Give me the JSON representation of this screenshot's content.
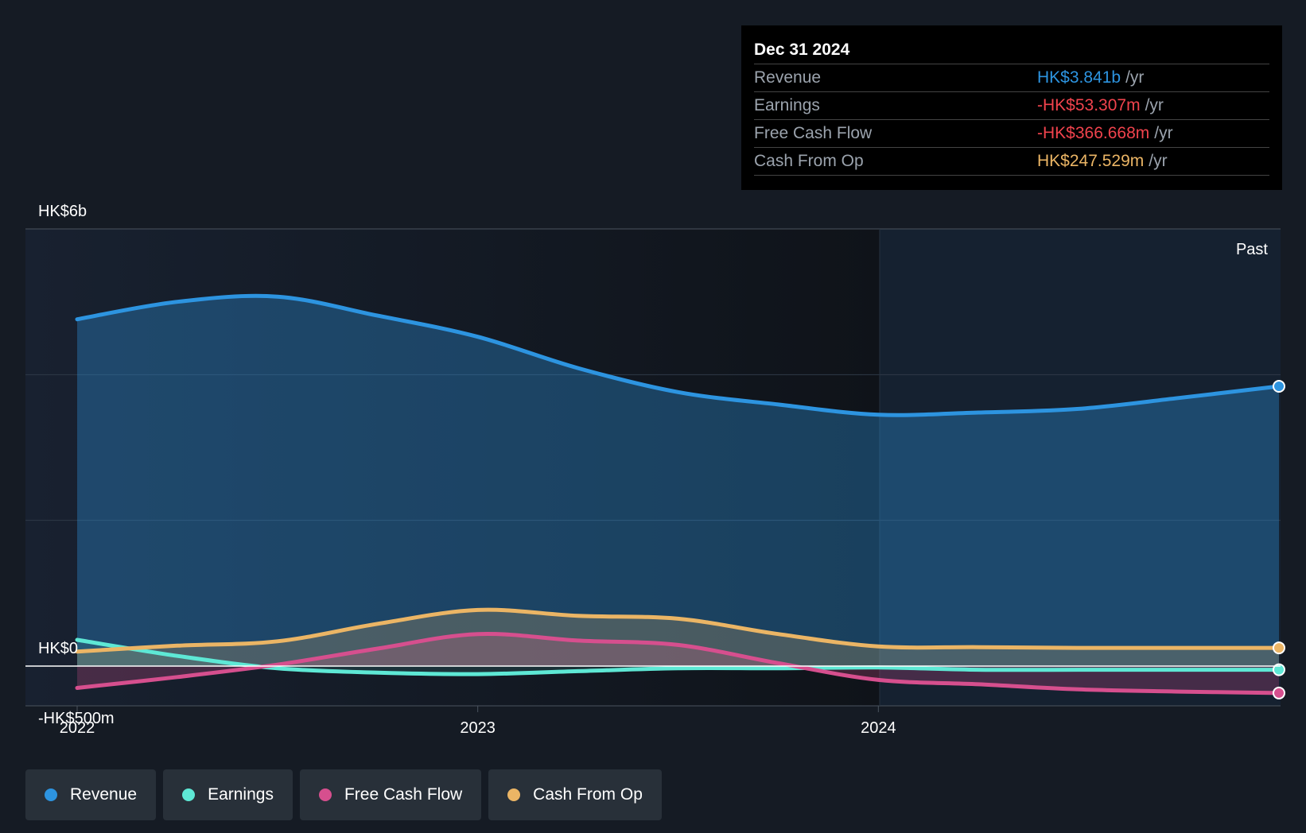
{
  "colors": {
    "background": "#151b24",
    "revenue": "#2d94e0",
    "earnings": "#5ee8d5",
    "free_cash_flow": "#d64f8e",
    "cash_from_op": "#ebb565",
    "negative": "#f0434d"
  },
  "tooltip": {
    "date": "Dec 31 2024",
    "rows": [
      {
        "name": "Revenue",
        "value": "HK$3.841b",
        "unit": "/yr",
        "color": "#2d94e0"
      },
      {
        "name": "Earnings",
        "value": "-HK$53.307m",
        "unit": "/yr",
        "color": "#f0434d"
      },
      {
        "name": "Free Cash Flow",
        "value": "-HK$366.668m",
        "unit": "/yr",
        "color": "#f0434d"
      },
      {
        "name": "Cash From Op",
        "value": "HK$247.529m",
        "unit": "/yr",
        "color": "#ebb565"
      }
    ]
  },
  "legend": [
    {
      "label": "Revenue",
      "color": "#2d94e0"
    },
    {
      "label": "Earnings",
      "color": "#5ee8d5"
    },
    {
      "label": "Free Cash Flow",
      "color": "#d64f8e"
    },
    {
      "label": "Cash From Op",
      "color": "#ebb565"
    }
  ],
  "chart_data": {
    "type": "area",
    "y_tick_labels": [
      "HK$6b",
      "HK$0",
      "-HK$500m"
    ],
    "x_tick_labels": [
      "2022",
      "2023",
      "2024"
    ],
    "past_label": "Past",
    "ylim": [
      -0.5,
      6.0
    ],
    "y_unit": "HK$ billions",
    "xlim": [
      2022.0,
      2025.0
    ],
    "shaded_past_start": 2024.0,
    "x": [
      2022.0,
      2022.25,
      2022.5,
      2022.75,
      2023.0,
      2023.25,
      2023.5,
      2023.75,
      2024.0,
      2024.25,
      2024.5,
      2024.75,
      2025.0
    ],
    "series": [
      {
        "name": "Revenue",
        "values": [
          4.76,
          5.0,
          5.07,
          4.81,
          4.52,
          4.09,
          3.76,
          3.59,
          3.45,
          3.48,
          3.53,
          3.68,
          3.84
        ]
      },
      {
        "name": "Earnings",
        "values": [
          0.36,
          0.14,
          -0.03,
          -0.09,
          -0.11,
          -0.07,
          -0.03,
          -0.03,
          -0.02,
          -0.05,
          -0.05,
          -0.05,
          -0.05
        ]
      },
      {
        "name": "Free Cash Flow",
        "values": [
          -0.3,
          -0.15,
          0.02,
          0.24,
          0.44,
          0.35,
          0.29,
          0.04,
          -0.19,
          -0.25,
          -0.32,
          -0.35,
          -0.37
        ]
      },
      {
        "name": "Cash From Op",
        "values": [
          0.2,
          0.28,
          0.34,
          0.58,
          0.77,
          0.69,
          0.65,
          0.44,
          0.27,
          0.26,
          0.25,
          0.25,
          0.25
        ]
      }
    ]
  }
}
